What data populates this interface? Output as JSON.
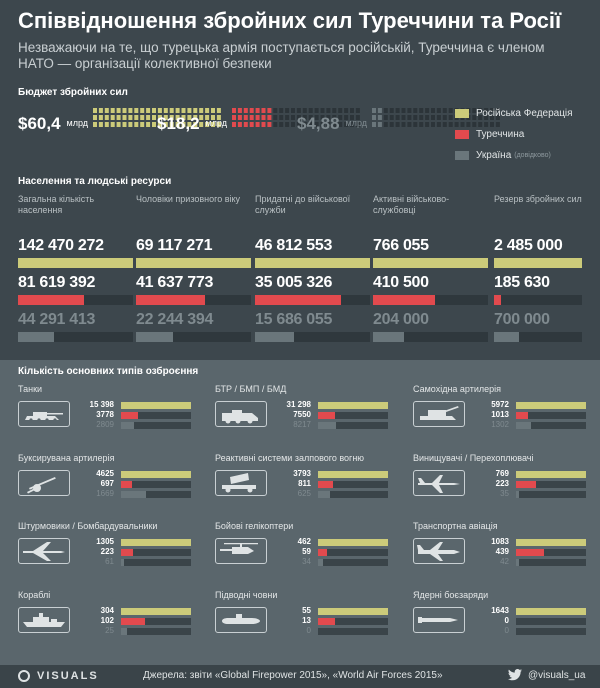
{
  "colors": {
    "russia": "#cccb7a",
    "turkey": "#e24a4e",
    "ukraine": "#6a767b"
  },
  "header": {
    "title": "Співвідношення збройних сил Туреччини та Росії",
    "subtitle": "Незважаючи на те, що турецька армія поступається російській, Туреччина є членом НАТО — організації колективної безпеки"
  },
  "budget": {
    "title": "Бюджет збройних сил",
    "items": [
      {
        "value": "$60,4",
        "unit": "млрд",
        "amount": 60.4,
        "country": "russia"
      },
      {
        "value": "$18,2",
        "unit": "млрд",
        "amount": 18.2,
        "country": "turkey"
      },
      {
        "value": "$4,88",
        "unit": "млрд",
        "amount": 4.88,
        "country": "ukraine"
      }
    ],
    "legend": {
      "russia": "Російська Федерація",
      "turkey": "Туреччина",
      "ukraine": "Україна",
      "ukraine_note": "(довідково)"
    }
  },
  "population": {
    "title": "Населення та людські ресурси",
    "columns": [
      {
        "label": "Загальна кількість населення",
        "russia": "142 470 272",
        "turkey": "81 619 392",
        "ukraine": "44 291 413",
        "fill": [
          1.0,
          0.573,
          0.311
        ]
      },
      {
        "label": "Чоловіки призовного віку",
        "russia": "69 117 271",
        "turkey": "41 637 773",
        "ukraine": "22 244 394",
        "fill": [
          1.0,
          0.602,
          0.322
        ]
      },
      {
        "label": "Придатні до військової служби",
        "russia": "46 812 553",
        "turkey": "35 005 326",
        "ukraine": "15 686 055",
        "fill": [
          1.0,
          0.748,
          0.335
        ]
      },
      {
        "label": "Активні військово-службовці",
        "russia": "766 055",
        "turkey": "410 500",
        "ukraine": "204 000",
        "fill": [
          1.0,
          0.536,
          0.266
        ]
      },
      {
        "label": "Резерв збройних сил",
        "russia": "2 485 000",
        "turkey": "185 630",
        "ukraine": "700 000",
        "fill": [
          1.0,
          0.075,
          0.282
        ]
      }
    ]
  },
  "weapons": {
    "title": "Кількість основних типів озброєння",
    "items": [
      {
        "name": "Танки",
        "icon": "tank-icon",
        "russia": "15 398",
        "turkey": "3778",
        "ukraine": "2809",
        "fill": [
          1.0,
          0.245,
          0.182
        ]
      },
      {
        "name": "БТР / БМП / БМД",
        "icon": "apc-icon",
        "russia": "31 298",
        "turkey": "7550",
        "ukraine": "8217",
        "fill": [
          1.0,
          0.241,
          0.263
        ]
      },
      {
        "name": "Самохідна артилерія",
        "icon": "self-propelled-artillery-icon",
        "russia": "5972",
        "turkey": "1013",
        "ukraine": "1302",
        "fill": [
          1.0,
          0.17,
          0.218
        ]
      },
      {
        "name": "Буксирувана артилерія",
        "icon": "towed-artillery-icon",
        "russia": "4625",
        "turkey": "697",
        "ukraine": "1669",
        "fill": [
          1.0,
          0.151,
          0.361
        ]
      },
      {
        "name": "Реактивні системи залпового вогню",
        "icon": "rocket-launcher-icon",
        "russia": "3793",
        "turkey": "811",
        "ukraine": "625",
        "fill": [
          1.0,
          0.214,
          0.165
        ]
      },
      {
        "name": "Винищувачі / Перехоплювачі",
        "icon": "fighter-jet-icon",
        "russia": "769",
        "turkey": "223",
        "ukraine": "35",
        "fill": [
          1.0,
          0.29,
          0.046
        ]
      },
      {
        "name": "Штурмовики / Бомбардувальники",
        "icon": "bomber-icon",
        "russia": "1305",
        "turkey": "223",
        "ukraine": "61",
        "fill": [
          1.0,
          0.171,
          0.047
        ]
      },
      {
        "name": "Бойові гелікоптери",
        "icon": "helicopter-icon",
        "russia": "462",
        "turkey": "59",
        "ukraine": "34",
        "fill": [
          1.0,
          0.128,
          0.074
        ]
      },
      {
        "name": "Транспортна авіація",
        "icon": "transport-plane-icon",
        "russia": "1083",
        "turkey": "439",
        "ukraine": "42",
        "fill": [
          1.0,
          0.405,
          0.039
        ]
      },
      {
        "name": "Кораблі",
        "icon": "ship-icon",
        "russia": "304",
        "turkey": "102",
        "ukraine": "25",
        "fill": [
          1.0,
          0.336,
          0.082
        ]
      },
      {
        "name": "Підводні човни",
        "icon": "submarine-icon",
        "russia": "55",
        "turkey": "13",
        "ukraine": "0",
        "fill": [
          1.0,
          0.236,
          0.0
        ]
      },
      {
        "name": "Ядерні боєзаряди",
        "icon": "nuclear-warhead-icon",
        "russia": "1643",
        "turkey": "0",
        "ukraine": "0",
        "fill": [
          1.0,
          0.0,
          0.0
        ]
      }
    ]
  },
  "footer": {
    "brand": "VISUALS",
    "sources": "Джерела: звіти «Global Firepower 2015», «World Air Forces 2015»",
    "handle": "@visuals_ua"
  }
}
